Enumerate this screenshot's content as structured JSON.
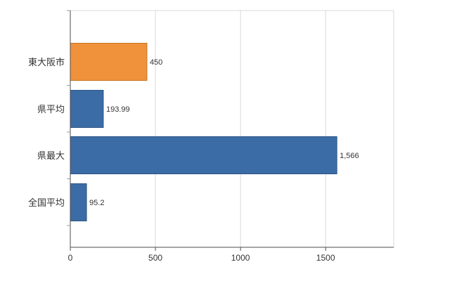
{
  "chart_data": {
    "type": "bar",
    "orientation": "horizontal",
    "title": "",
    "xlabel": "",
    "ylabel": "",
    "categories": [
      "東大阪市",
      "県平均",
      "県最大",
      "全国平均"
    ],
    "values": [
      450,
      193.99,
      1566,
      95.2
    ],
    "value_labels": [
      "450",
      "193.99",
      "1,566",
      "95.2"
    ],
    "bar_fill_colors": [
      "#f0913c",
      "#3b6ca5",
      "#3b6ca5",
      "#3b6ca5"
    ],
    "bar_border_colors": [
      "#c4761f",
      "#2d5684",
      "#2d5684",
      "#2d5684"
    ],
    "xlim": [
      0,
      1900
    ],
    "x_ticks": [
      0,
      500,
      1000,
      1500
    ],
    "x_tick_labels": [
      "0",
      "500",
      "1000",
      "1500"
    ],
    "grid": "vertical",
    "legend_position": "none",
    "colors": {
      "background": "#ffffff",
      "grid": "#d9d9d9",
      "axis": "#4d4d4d",
      "text": "#333333"
    }
  }
}
